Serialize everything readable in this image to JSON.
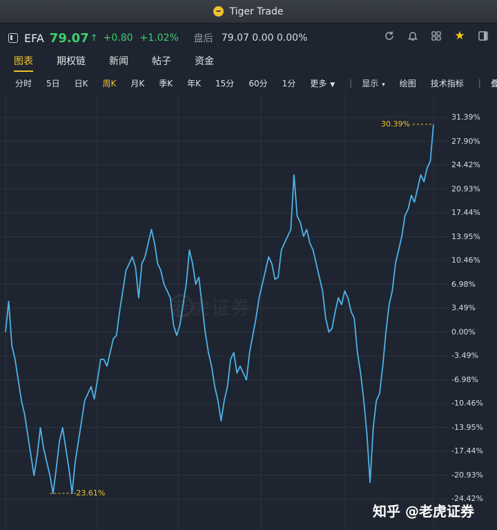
{
  "app": {
    "title": "Tiger Trade"
  },
  "quote": {
    "symbol": "EFA",
    "price": "79.07",
    "arrow": "↑",
    "change": "+0.80",
    "change_pct": "+1.02%",
    "after_hours_label": "盘后",
    "after_hours": "79.07 0.00 0.00%"
  },
  "header_icons": [
    "refresh-icon",
    "bell-icon",
    "grid-icon",
    "star-icon",
    "layout-icon"
  ],
  "colors": {
    "accent": "#f2c12e",
    "up": "#3fcf6a",
    "line": "#4fb3ea",
    "background": "#1e2530"
  },
  "tabs": [
    {
      "label": "图表",
      "active": true
    },
    {
      "label": "期权链",
      "active": false
    },
    {
      "label": "新闻",
      "active": false
    },
    {
      "label": "帖子",
      "active": false
    },
    {
      "label": "资金",
      "active": false
    }
  ],
  "periods": [
    {
      "label": "分时",
      "active": false
    },
    {
      "label": "5日",
      "active": false
    },
    {
      "label": "日K",
      "active": false
    },
    {
      "label": "周K",
      "active": true
    },
    {
      "label": "月K",
      "active": false
    },
    {
      "label": "季K",
      "active": false
    },
    {
      "label": "年K",
      "active": false
    },
    {
      "label": "15分",
      "active": false
    },
    {
      "label": "60分",
      "active": false
    },
    {
      "label": "1分",
      "active": false
    }
  ],
  "toolbar": {
    "more": "更多",
    "display": "显示",
    "draw": "绘图",
    "indicators": "技术指标",
    "overlay": "叠加"
  },
  "chart_data": {
    "type": "line",
    "y_ticks": [
      "31.39%",
      "27.90%",
      "24.42%",
      "20.93%",
      "17.44%",
      "13.95%",
      "10.46%",
      "6.98%",
      "3.49%",
      "0.00%",
      "-3.49%",
      "-6.98%",
      "-10.46%",
      "-13.95%",
      "-17.44%",
      "-20.93%",
      "-24.42%"
    ],
    "ylim": [
      -24.42,
      31.39
    ],
    "grid": true,
    "max_label": "30.39%",
    "min_label": "-23.61%",
    "series": [
      {
        "values": [
          0,
          4.5,
          -2,
          -4,
          -7,
          -10,
          -12,
          -15,
          -18,
          -21,
          -18,
          -14,
          -17,
          -19,
          -21,
          -23.6,
          -20,
          -16,
          -14,
          -17,
          -20,
          -23.61,
          -19,
          -16,
          -13,
          -10,
          -9,
          -8,
          -9.8,
          -7,
          -4,
          -4,
          -5,
          -3,
          -1,
          -0.5,
          3,
          6,
          9,
          10,
          11,
          9.5,
          5,
          10,
          11,
          13,
          15,
          13,
          10,
          9,
          7,
          6,
          5,
          1,
          -0.5,
          1,
          4,
          7,
          12,
          10,
          7,
          8,
          4,
          0,
          -3,
          -5,
          -8,
          -10,
          -13,
          -10,
          -8,
          -4,
          -3,
          -6,
          -5,
          -6,
          -7,
          -3,
          -0.5,
          2,
          5,
          7,
          9,
          11,
          10,
          7.7,
          8,
          12,
          13,
          14,
          15,
          23,
          17,
          16,
          14,
          15,
          13,
          12,
          10,
          8,
          6,
          2,
          0,
          0.5,
          3,
          5,
          4,
          6,
          5,
          3,
          2,
          -3,
          -6,
          -10,
          -15,
          -22,
          -14,
          -10,
          -9,
          -5,
          0,
          4,
          6,
          10,
          12,
          14,
          17,
          18,
          20,
          19,
          21,
          23,
          22,
          24,
          25,
          30.39
        ]
      }
    ]
  },
  "watermark": "老虎证券",
  "footer_credit": "知乎 @老虎证券"
}
